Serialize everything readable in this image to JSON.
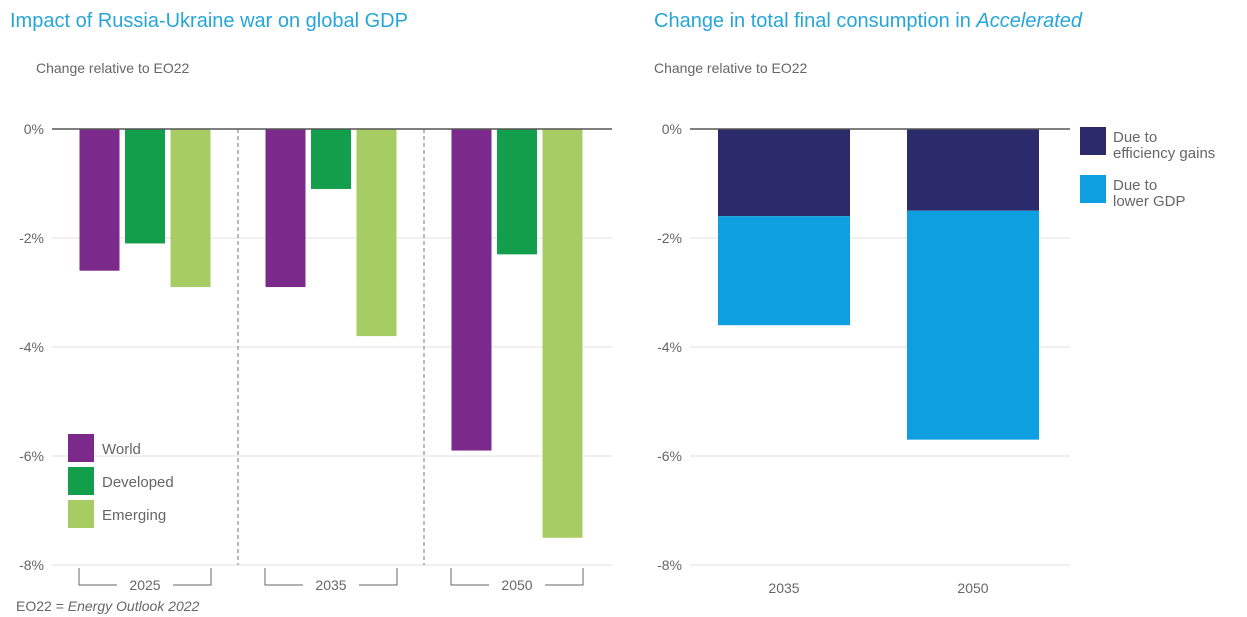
{
  "colors": {
    "title": "#26a6d8",
    "world": "#7b2a8b",
    "developed": "#129e4a",
    "emerging": "#a8cc64",
    "efficiency": "#2b2a6b",
    "lower_gdp": "#0e9fe0",
    "axis": "#555555",
    "grid": "#e2e2e2"
  },
  "left": {
    "title": "Impact of Russia-Ukraine war on global GDP",
    "subtitle": "Change relative to EO22"
  },
  "right": {
    "title_prefix": "Change in total final consumption in ",
    "title_emph": "Accelerated",
    "subtitle": "Change relative to EO22"
  },
  "footnote": {
    "prefix": "EO22 = ",
    "emph": "Energy Outlook 2022"
  },
  "chart_data": [
    {
      "type": "bar",
      "title": "Impact of Russia-Ukraine war on global GDP",
      "subtitle": "Change relative to EO22",
      "unit": "%",
      "categories": [
        "2025",
        "2035",
        "2050"
      ],
      "series": [
        {
          "name": "World",
          "color": "#7b2a8b",
          "values": [
            -2.6,
            -2.9,
            -5.9
          ]
        },
        {
          "name": "Developed",
          "color": "#129e4a",
          "values": [
            -2.1,
            -1.1,
            -2.3
          ]
        },
        {
          "name": "Emerging",
          "color": "#a8cc64",
          "values": [
            -2.9,
            -3.8,
            -7.5
          ]
        }
      ],
      "ylim": [
        -8,
        0
      ],
      "yticks": [
        0,
        -2,
        -4,
        -6,
        -8
      ],
      "ytick_labels": [
        "0%",
        "-2%",
        "-4%",
        "-6%",
        "-8%"
      ],
      "grid": true,
      "legend_position": "bottom-left"
    },
    {
      "type": "bar",
      "stacked": true,
      "title": "Change in total final consumption in Accelerated",
      "subtitle": "Change relative to EO22",
      "unit": "%",
      "categories": [
        "2035",
        "2050"
      ],
      "series": [
        {
          "name": "Due to efficiency gains",
          "color": "#2b2a6b",
          "values": [
            -1.6,
            -1.5
          ]
        },
        {
          "name": "Due to lower GDP",
          "color": "#0e9fe0",
          "values": [
            -2.0,
            -4.2
          ]
        }
      ],
      "ylim": [
        -8,
        0
      ],
      "yticks": [
        0,
        -2,
        -4,
        -6,
        -8
      ],
      "ytick_labels": [
        "0%",
        "-2%",
        "-4%",
        "-6%",
        "-8%"
      ],
      "grid": true,
      "legend_position": "top-right"
    }
  ]
}
